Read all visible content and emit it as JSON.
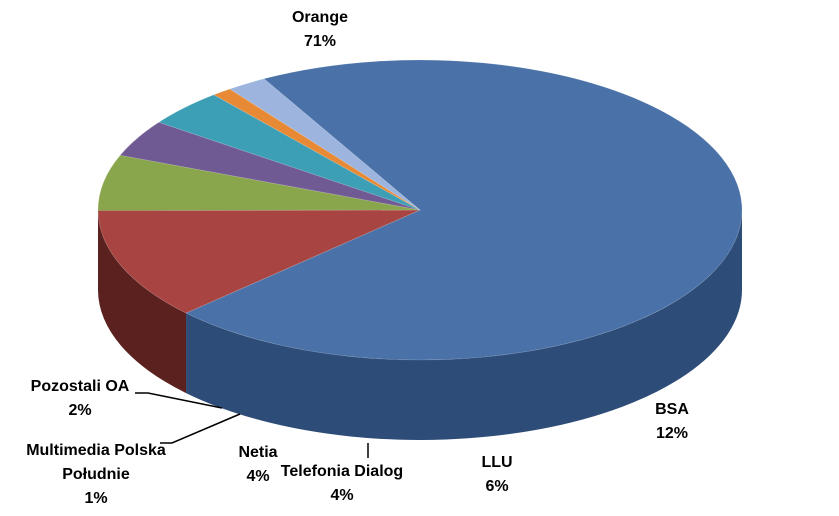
{
  "chart_data": {
    "type": "pie",
    "style": "3d",
    "title": "",
    "slices": [
      {
        "label": "Orange",
        "value": 71,
        "value_label": "71%",
        "color": "#4A72A8",
        "side_color": "#2E4C78"
      },
      {
        "label": "BSA",
        "value": 12,
        "value_label": "12%",
        "color": "#A84542",
        "side_color": "#5A211F"
      },
      {
        "label": "LLU",
        "value": 6,
        "value_label": "6%",
        "color": "#8AA64D",
        "side_color": "#4C5F27"
      },
      {
        "label": "Telefonia Dialog",
        "value": 4,
        "value_label": "4%",
        "color": "#705A94",
        "side_color": "#3E3258"
      },
      {
        "label": "Netia",
        "value": 4,
        "value_label": "4%",
        "color": "#3C9FB5",
        "side_color": "#256C7C"
      },
      {
        "label": "Multimedia Polska Południe",
        "value": 1,
        "value_label": "1%",
        "color": "#E88A35",
        "side_color": "#A85E1E"
      },
      {
        "label": "Pozostali OA",
        "value": 2,
        "value_label": "2%",
        "color": "#9CB4DE",
        "side_color": "#8099C4"
      }
    ]
  }
}
